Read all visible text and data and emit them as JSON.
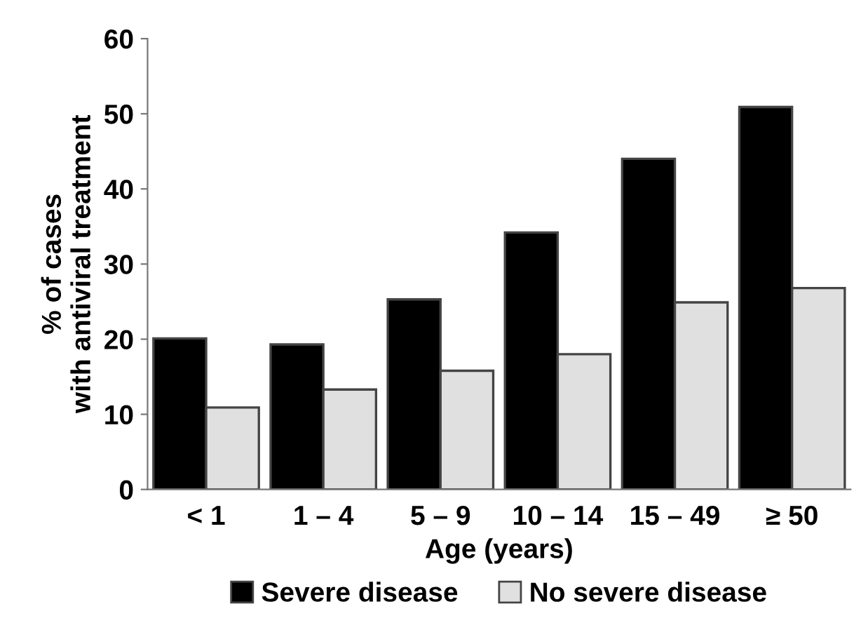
{
  "chart_data": {
    "type": "bar",
    "xlabel": "Age (years)",
    "ylabel": "% of cases\nwith antiviral treatment",
    "categories": [
      "< 1",
      "1 – 4",
      "5 – 9",
      "10 – 14",
      "15 – 49",
      "≥ 50"
    ],
    "series": [
      {
        "name": "Severe disease",
        "color": "#000000",
        "values": [
          20.1,
          19.3,
          25.3,
          34.2,
          44.0,
          50.9
        ]
      },
      {
        "name": "No severe disease",
        "color": "#e0e0e0",
        "values": [
          10.9,
          13.3,
          15.8,
          18.0,
          24.9,
          26.8
        ]
      }
    ],
    "ylim": [
      0,
      60
    ],
    "yticks": [
      0,
      10,
      20,
      30,
      40,
      50,
      60
    ],
    "grid": false,
    "legend": "bottom"
  }
}
